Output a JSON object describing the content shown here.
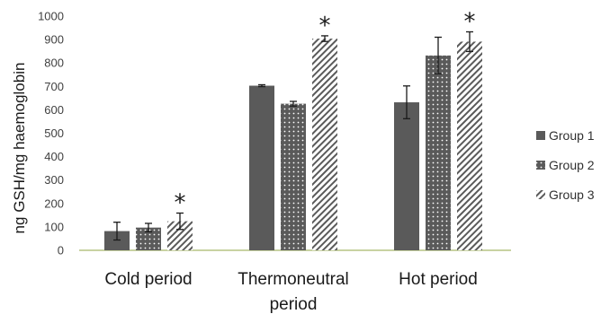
{
  "chart_data": {
    "type": "bar",
    "title": "",
    "xlabel": "",
    "ylabel": "ng GSH/mg haemoglobin",
    "ylim": [
      0,
      1000
    ],
    "yticks": [
      "0",
      "100",
      "200",
      "300",
      "400",
      "500",
      "600",
      "700",
      "800",
      "900",
      "1000"
    ],
    "grid": false,
    "legend_position": "right",
    "categories": [
      [
        "Cold period"
      ],
      [
        "Thermoneutral",
        "period"
      ],
      [
        "Hot period"
      ]
    ],
    "series": [
      {
        "name": "Group 1",
        "pattern": "solid",
        "color": "#595959",
        "values": [
          82,
          703,
          632
        ],
        "errors": [
          38,
          4,
          70
        ],
        "significance": [
          "",
          "",
          ""
        ]
      },
      {
        "name": "Group 2",
        "pattern": "dots",
        "color": "#595959",
        "values": [
          97,
          626,
          832
        ],
        "errors": [
          18,
          10,
          78
        ],
        "significance": [
          "",
          "",
          ""
        ]
      },
      {
        "name": "Group 3",
        "pattern": "diagonal-stripes",
        "color": "#595959",
        "values": [
          124,
          904,
          891
        ],
        "errors": [
          35,
          12,
          42
        ],
        "significance": [
          "*",
          "*",
          "*"
        ]
      }
    ]
  }
}
